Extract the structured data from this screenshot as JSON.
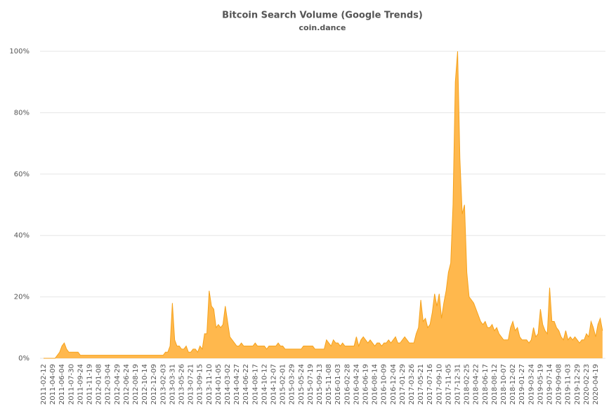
{
  "chart_data": {
    "type": "area",
    "title": "Bitcoin Search Volume (Google Trends)",
    "subtitle": "coin.dance",
    "color": "#ffb84d",
    "line_color": "#f5a21c",
    "grid": true,
    "ylim": [
      0,
      100
    ],
    "yticks": [
      {
        "value": 0,
        "label": "0%"
      },
      {
        "value": 20,
        "label": "20%"
      },
      {
        "value": 40,
        "label": "40%"
      },
      {
        "value": 60,
        "label": "60%"
      },
      {
        "value": 80,
        "label": "80%"
      },
      {
        "value": 100,
        "label": "100%"
      }
    ],
    "categories": [
      "2011-02-12",
      null,
      null,
      null,
      "2011-04-09",
      null,
      null,
      null,
      "2011-06-04",
      null,
      null,
      null,
      "2011-07-30",
      null,
      null,
      null,
      "2011-09-24",
      null,
      null,
      null,
      "2011-11-19",
      null,
      null,
      null,
      "2012-01-08",
      null,
      null,
      null,
      "2012-03-04",
      null,
      null,
      null,
      "2012-04-29",
      null,
      null,
      null,
      "2012-06-24",
      null,
      null,
      null,
      "2012-08-19",
      null,
      null,
      null,
      "2012-10-14",
      null,
      null,
      null,
      "2012-12-09",
      null,
      null,
      null,
      "2013-02-03",
      null,
      null,
      null,
      "2013-03-31",
      null,
      null,
      null,
      "2013-05-26",
      null,
      null,
      null,
      "2013-07-21",
      null,
      null,
      null,
      "2013-09-15",
      null,
      null,
      null,
      "2013-11-10",
      null,
      null,
      null,
      "2014-01-05",
      null,
      null,
      null,
      "2014-03-02",
      null,
      null,
      null,
      "2014-04-27",
      null,
      null,
      null,
      "2014-06-22",
      null,
      null,
      null,
      "2014-08-17",
      null,
      null,
      null,
      "2014-10-12",
      null,
      null,
      null,
      "2014-12-07",
      null,
      null,
      null,
      "2015-02-01",
      null,
      null,
      null,
      "2015-03-29",
      null,
      null,
      null,
      "2015-05-24",
      null,
      null,
      null,
      "2015-07-19",
      null,
      null,
      null,
      "2015-09-13",
      null,
      null,
      null,
      "2015-11-08",
      null,
      null,
      null,
      "2016-01-03",
      null,
      null,
      null,
      "2016-02-28",
      null,
      null,
      null,
      "2016-04-24",
      null,
      null,
      null,
      "2016-06-19",
      null,
      null,
      null,
      "2016-08-14",
      null,
      null,
      null,
      "2016-10-09",
      null,
      null,
      null,
      "2016-12-04",
      null,
      null,
      null,
      "2017-01-29",
      null,
      null,
      null,
      "2017-03-26",
      null,
      null,
      null,
      "2017-05-21",
      null,
      null,
      null,
      "2017-07-16",
      null,
      null,
      null,
      "2017-09-10",
      null,
      null,
      null,
      "2017-11-05",
      null,
      null,
      null,
      "2017-12-31",
      null,
      null,
      null,
      "2018-02-25",
      null,
      null,
      null,
      "2018-04-22",
      null,
      null,
      null,
      "2018-06-17",
      null,
      null,
      null,
      "2018-08-12",
      null,
      null,
      null,
      "2018-10-07",
      null,
      null,
      null,
      "2018-12-02",
      null,
      null,
      null,
      "2019-01-27",
      null,
      null,
      null,
      "2019-03-24",
      null,
      null,
      null,
      "2019-05-19",
      null,
      null,
      null,
      "2019-07-14",
      null,
      null,
      null,
      "2019-09-08",
      null,
      null,
      null,
      "2019-11-03",
      null,
      null,
      null,
      "2019-12-29",
      null,
      null,
      null,
      "2020-02-23",
      null,
      null,
      null,
      "2020-04-19",
      null,
      null,
      null
    ],
    "values": [
      0,
      0,
      0,
      0,
      0,
      0,
      1,
      2,
      4,
      5,
      3,
      2,
      2,
      2,
      2,
      2,
      1,
      1,
      1,
      1,
      1,
      1,
      1,
      1,
      1,
      1,
      1,
      1,
      1,
      1,
      1,
      1,
      1,
      1,
      1,
      1,
      1,
      1,
      1,
      1,
      1,
      1,
      1,
      1,
      1,
      1,
      1,
      1,
      1,
      1,
      1,
      1,
      1,
      2,
      2,
      4,
      18,
      6,
      4,
      4,
      3,
      3,
      4,
      2,
      2,
      3,
      3,
      2,
      4,
      3,
      8,
      8,
      22,
      17,
      16,
      10,
      11,
      10,
      11,
      17,
      12,
      7,
      6,
      5,
      4,
      4,
      5,
      4,
      4,
      4,
      4,
      4,
      5,
      4,
      4,
      4,
      4,
      3,
      4,
      4,
      4,
      4,
      5,
      4,
      4,
      3,
      3,
      3,
      3,
      3,
      3,
      3,
      3,
      4,
      4,
      4,
      4,
      4,
      3,
      3,
      3,
      3,
      3,
      6,
      5,
      4,
      6,
      5,
      5,
      4,
      5,
      4,
      4,
      4,
      4,
      4,
      7,
      4,
      6,
      7,
      6,
      5,
      6,
      5,
      4,
      5,
      5,
      4,
      5,
      5,
      6,
      5,
      6,
      7,
      5,
      5,
      6,
      7,
      6,
      5,
      5,
      5,
      8,
      10,
      19,
      12,
      13,
      10,
      11,
      15,
      21,
      17,
      21,
      13,
      18,
      22,
      28,
      31,
      50,
      90,
      100,
      65,
      47,
      50,
      28,
      20,
      19,
      18,
      16,
      14,
      12,
      11,
      12,
      10,
      10,
      11,
      9,
      10,
      8,
      7,
      6,
      6,
      6,
      10,
      12,
      9,
      10,
      7,
      6,
      6,
      6,
      5,
      6,
      10,
      7,
      8,
      16,
      11,
      9,
      8,
      23,
      12,
      12,
      10,
      9,
      7,
      6,
      9,
      6,
      7,
      6,
      7,
      6,
      5,
      6,
      6,
      8,
      7,
      12,
      10,
      7,
      11,
      13,
      9
    ]
  }
}
